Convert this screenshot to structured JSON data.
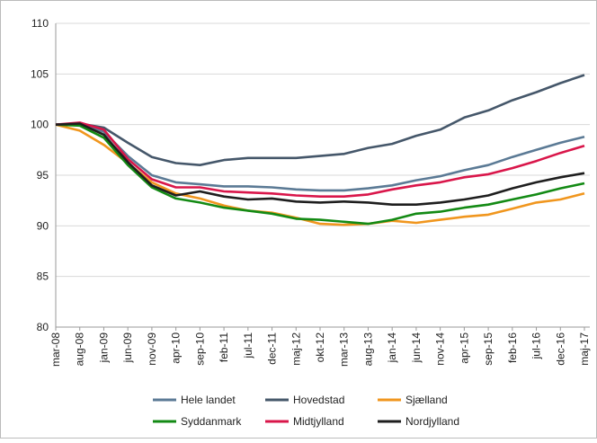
{
  "chart_data": {
    "type": "line",
    "categories": [
      "mar-08",
      "aug-08",
      "jan-09",
      "jun-09",
      "nov-09",
      "apr-10",
      "sep-10",
      "feb-11",
      "jul-11",
      "dec-11",
      "maj-12",
      "okt-12",
      "mar-13",
      "aug-13",
      "jan-14",
      "jun-14",
      "nov-14",
      "apr-15",
      "sep-15",
      "feb-16",
      "jul-16",
      "dec-16",
      "maj-17"
    ],
    "series": [
      {
        "name": "Hele landet",
        "color": "#5b7a95",
        "values": [
          100,
          100.1,
          99.3,
          96.9,
          95.0,
          94.3,
          94.1,
          93.9,
          93.9,
          93.8,
          93.6,
          93.5,
          93.5,
          93.7,
          94.0,
          94.5,
          94.9,
          95.5,
          96.0,
          96.8,
          97.5,
          98.2,
          98.8
        ]
      },
      {
        "name": "Hovedstad",
        "color": "#45576a",
        "values": [
          100,
          100.1,
          99.7,
          98.2,
          96.8,
          96.2,
          96.0,
          96.5,
          96.7,
          96.7,
          96.7,
          96.9,
          97.1,
          97.7,
          98.1,
          98.9,
          99.5,
          100.7,
          101.4,
          102.4,
          103.2,
          104.1,
          104.9
        ]
      },
      {
        "name": "Sjælland",
        "color": "#f0961e",
        "values": [
          100,
          99.4,
          98.0,
          96.2,
          94.3,
          93.2,
          92.7,
          92.0,
          91.5,
          91.3,
          90.8,
          90.2,
          90.1,
          90.2,
          90.5,
          90.3,
          90.6,
          90.9,
          91.1,
          91.7,
          92.3,
          92.6,
          93.2
        ]
      },
      {
        "name": "Syddanmark",
        "color": "#138a14",
        "values": [
          100,
          99.9,
          98.7,
          96.0,
          93.8,
          92.7,
          92.3,
          91.8,
          91.5,
          91.2,
          90.7,
          90.6,
          90.4,
          90.2,
          90.6,
          91.2,
          91.4,
          91.8,
          92.1,
          92.6,
          93.1,
          93.7,
          94.2
        ]
      },
      {
        "name": "Midtjylland",
        "color": "#d9164a",
        "values": [
          100,
          100.2,
          99.5,
          96.6,
          94.6,
          93.8,
          93.8,
          93.4,
          93.3,
          93.2,
          93.0,
          92.9,
          92.9,
          93.1,
          93.6,
          94.0,
          94.3,
          94.8,
          95.1,
          95.7,
          96.4,
          97.2,
          97.9
        ]
      },
      {
        "name": "Nordjylland",
        "color": "#1e1e1e",
        "values": [
          100,
          100.1,
          99.0,
          96.3,
          94.0,
          93.0,
          93.4,
          92.9,
          92.6,
          92.7,
          92.4,
          92.3,
          92.4,
          92.3,
          92.1,
          92.1,
          92.3,
          92.6,
          93.0,
          93.7,
          94.3,
          94.8,
          95.2
        ]
      }
    ],
    "ylim": [
      80,
      110
    ],
    "yticks": [
      80,
      85,
      90,
      95,
      100,
      105,
      110
    ],
    "grid": true,
    "legend": "bottom"
  }
}
